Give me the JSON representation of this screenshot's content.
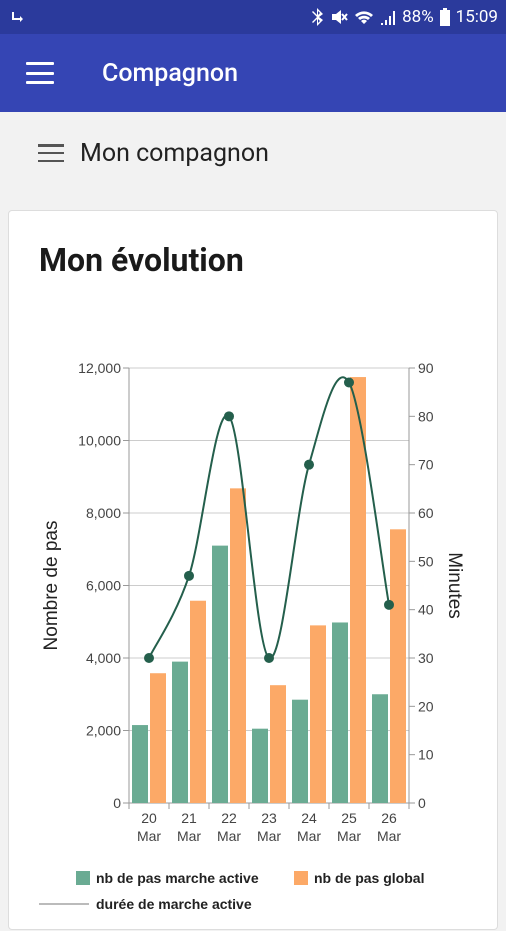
{
  "status_bar": {
    "time": "15:09",
    "battery": "88%"
  },
  "app_bar": {
    "title": "Compagnon"
  },
  "section": {
    "title": "Mon compagnon"
  },
  "card": {
    "title": "Mon évolution"
  },
  "colors": {
    "primary_dark": "#2b3a9c",
    "primary": "#3545b4",
    "bar_active": "#6aab93",
    "bar_global": "#fca967",
    "line": "#245f4c"
  },
  "chart_data": {
    "type": "bar",
    "categories": [
      [
        "20",
        "Mar"
      ],
      [
        "21",
        "Mar"
      ],
      [
        "22",
        "Mar"
      ],
      [
        "23",
        "Mar"
      ],
      [
        "24",
        "Mar"
      ],
      [
        "25",
        "Mar"
      ],
      [
        "26",
        "Mar"
      ]
    ],
    "series": [
      {
        "name": "nb de pas marche active",
        "type": "bar",
        "axis": "left",
        "values": [
          2150,
          3900,
          7100,
          2050,
          2850,
          4980,
          3000
        ]
      },
      {
        "name": "nb de pas global",
        "type": "bar",
        "axis": "left",
        "values": [
          3580,
          5580,
          8680,
          3250,
          4900,
          11750,
          7550
        ]
      },
      {
        "name": "durée de marche active",
        "type": "line",
        "axis": "right",
        "values": [
          30,
          47,
          80,
          30,
          70,
          87,
          41
        ]
      }
    ],
    "ylabel": "Nombre de pas",
    "y2label": "Minutes",
    "ylim": [
      0,
      12000
    ],
    "y2lim": [
      0,
      90
    ],
    "yticks": [
      "0",
      "2,000",
      "4,000",
      "6,000",
      "8,000",
      "10,000",
      "12,000"
    ],
    "y2ticks": [
      "0",
      "10",
      "20",
      "30",
      "40",
      "50",
      "60",
      "70",
      "80",
      "90"
    ],
    "legend": "bottom",
    "legend_partial_text": "durée de marche active"
  }
}
